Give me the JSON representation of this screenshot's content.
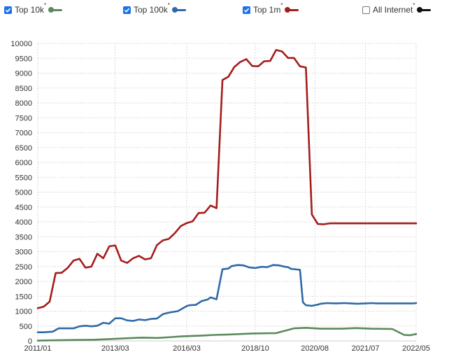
{
  "legend": [
    {
      "label": "Top 10k",
      "checked": true,
      "color": "#5a8a5c",
      "marker": "*"
    },
    {
      "label": "Top 100k",
      "checked": true,
      "color": "#2e6aa6",
      "marker": "*"
    },
    {
      "label": "Top 1m",
      "checked": true,
      "color": "#a51c1c",
      "marker": "*"
    },
    {
      "label": "All Internet",
      "checked": false,
      "color": "#111111",
      "marker": "*"
    }
  ],
  "chart_data": {
    "type": "line",
    "title": "",
    "xlabel": "",
    "ylabel": "",
    "ylim": [
      0,
      10000
    ],
    "yticks": [
      0,
      500,
      1000,
      1500,
      2000,
      2500,
      3000,
      3500,
      4000,
      4500,
      5000,
      5500,
      6000,
      6500,
      7000,
      7500,
      8000,
      8500,
      9000,
      9500,
      10000
    ],
    "x_tick_labels": [
      "2011/01",
      "2013/03",
      "2016/03",
      "2018/10",
      "2020/08",
      "2021/07",
      "2022/05"
    ],
    "grid": true,
    "legend_position": "top",
    "x_index_range": [
      0,
      127
    ],
    "x_tick_index": [
      0,
      26,
      50,
      73,
      93,
      110,
      127
    ],
    "series": [
      {
        "name": "Top 10k",
        "color": "#5a8a5c",
        "x": [
          0,
          6,
          12,
          19,
          24,
          30,
          35,
          40,
          45,
          48,
          55,
          59,
          63,
          68,
          72,
          80,
          86,
          90,
          95,
          102,
          107,
          112,
          119,
          123,
          125,
          127
        ],
        "values": [
          10,
          20,
          30,
          40,
          60,
          90,
          110,
          100,
          130,
          150,
          180,
          200,
          210,
          230,
          250,
          260,
          420,
          440,
          410,
          410,
          430,
          410,
          400,
          200,
          190,
          230
        ]
      },
      {
        "name": "Top 100k",
        "color": "#2e6aa6",
        "x": [
          0,
          2,
          5,
          7,
          8,
          12,
          14,
          16,
          18,
          20,
          22,
          24,
          26,
          28,
          30,
          32,
          34,
          36,
          38,
          40,
          42,
          44,
          47,
          50,
          51,
          53,
          55,
          57,
          58,
          60,
          62,
          64,
          65,
          67,
          69,
          71,
          73,
          75,
          77,
          79,
          81,
          83,
          84,
          85,
          87,
          88,
          89,
          90,
          92,
          94,
          95,
          97,
          100,
          103,
          105,
          107,
          110,
          112,
          114,
          117,
          120,
          121,
          123,
          124,
          126,
          127
        ],
        "values": [
          290,
          290,
          310,
          420,
          420,
          420,
          490,
          510,
          490,
          510,
          610,
          580,
          760,
          760,
          690,
          670,
          720,
          700,
          740,
          750,
          900,
          950,
          1000,
          1170,
          1200,
          1210,
          1340,
          1390,
          1460,
          1400,
          2410,
          2430,
          2510,
          2550,
          2540,
          2470,
          2450,
          2490,
          2480,
          2550,
          2540,
          2490,
          2480,
          2420,
          2400,
          2390,
          1300,
          1200,
          1180,
          1220,
          1250,
          1270,
          1260,
          1270,
          1260,
          1250,
          1260,
          1270,
          1260,
          1260,
          1260,
          1260,
          1260,
          1260,
          1260,
          1270
        ]
      },
      {
        "name": "Top 1m",
        "color": "#a51c1c",
        "x": [
          0,
          2,
          4,
          6,
          8,
          10,
          12,
          14,
          16,
          18,
          20,
          22,
          24,
          26,
          28,
          30,
          32,
          34,
          36,
          38,
          40,
          42,
          44,
          46,
          48,
          50,
          52,
          54,
          56,
          58,
          60,
          62,
          64,
          66,
          68,
          70,
          72,
          74,
          76,
          78,
          80,
          82,
          84,
          86,
          88,
          90,
          92,
          94,
          96,
          98,
          100,
          102,
          104,
          106,
          108,
          110,
          112,
          114,
          116,
          118,
          120,
          122,
          124,
          126,
          127
        ],
        "values": [
          1100,
          1150,
          1320,
          2280,
          2290,
          2450,
          2700,
          2760,
          2460,
          2500,
          2930,
          2780,
          3180,
          3210,
          2700,
          2620,
          2780,
          2860,
          2740,
          2780,
          3220,
          3380,
          3430,
          3620,
          3860,
          3960,
          4020,
          4300,
          4310,
          4550,
          4460,
          8770,
          8880,
          9210,
          9380,
          9470,
          9240,
          9230,
          9400,
          9410,
          9780,
          9730,
          9510,
          9510,
          9230,
          9190,
          4250,
          3930,
          3920,
          3950,
          3950,
          3950,
          3950,
          3950,
          3950,
          3950,
          3950,
          3950,
          3950,
          3950,
          3950,
          3950,
          3950,
          3950,
          3950
        ]
      }
    ]
  }
}
